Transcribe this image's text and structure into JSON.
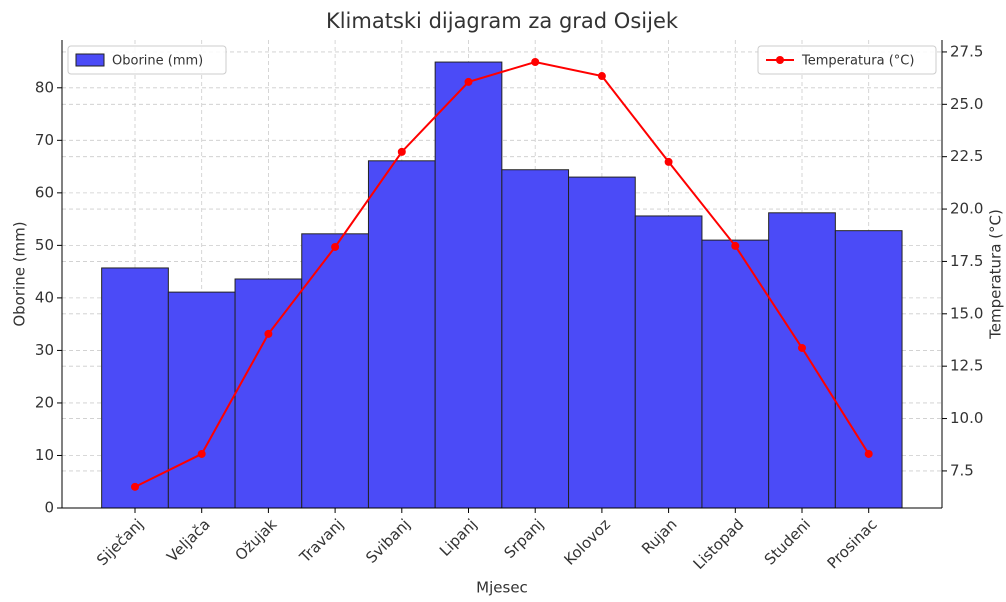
{
  "chart_data": {
    "type": "bar",
    "title": "Klimatski dijagram za grad Osijek",
    "xlabel": "Mjesec",
    "ylabel": "Oborine (mm)",
    "y2label": "Temperatura (°C)",
    "categories": [
      "Siječanj",
      "Veljača",
      "Ožujak",
      "Travanj",
      "Svibanj",
      "Lipanj",
      "Srpanj",
      "Kolovoz",
      "Rujan",
      "Listopad",
      "Studeni",
      "Prosinac"
    ],
    "series": [
      {
        "name": "Oborine (mm)",
        "type": "bar",
        "color": "#4b4bf7",
        "values": [
          45.7,
          41.1,
          43.6,
          52.2,
          66.1,
          84.9,
          64.4,
          63.0,
          55.6,
          51.0,
          56.2,
          52.8
        ]
      },
      {
        "name": "Temperatura (°C)",
        "type": "line",
        "axis": "y2",
        "color": "#ff0000",
        "values": [
          6.74,
          8.31,
          14.04,
          18.19,
          22.73,
          26.07,
          27.02,
          26.35,
          22.25,
          18.24,
          13.37,
          8.31
        ]
      }
    ],
    "ylim": [
      0,
      89.1
    ],
    "yticks": [
      0,
      10,
      20,
      30,
      40,
      50,
      60,
      70,
      80
    ],
    "y2lim": [
      5.73,
      28.07
    ],
    "y2ticks": [
      7.5,
      {
        "value": 10,
        "label": "10.0"
      },
      12.5,
      {
        "value": 15,
        "label": "15.0"
      },
      17.5,
      {
        "value": 20,
        "label": "20.0"
      },
      22.5,
      {
        "value": 25,
        "label": "25.0"
      },
      27.5
    ],
    "grid": true,
    "legend": "upper left",
    "legend2": "upper right"
  }
}
